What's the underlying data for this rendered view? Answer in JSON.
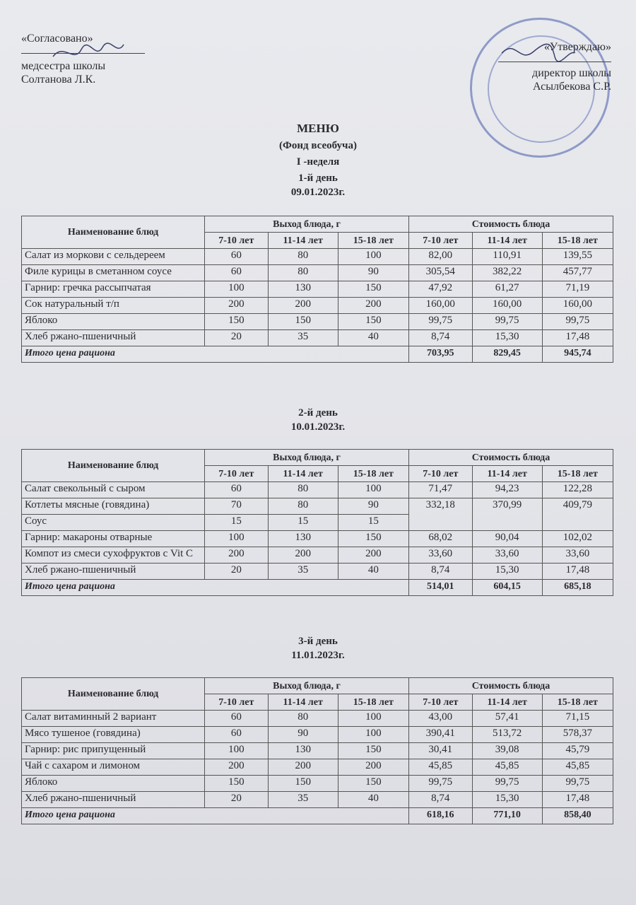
{
  "approval_left": {
    "label": "«Согласовано»",
    "role": "медсестра школы",
    "name": "Солтанова Л.К."
  },
  "approval_right": {
    "label": "«Утверждаю»",
    "role": "директор школы",
    "name": "Асылбекова С.Р."
  },
  "title": {
    "menu": "МЕНЮ",
    "fund": "(Фонд всеобуча)",
    "week": "I -неделя"
  },
  "columns": {
    "name": "Наименование блюд",
    "yield": "Выход блюда, г",
    "cost": "Стоимость блюда",
    "ages": [
      "7-10 лет",
      "11-14 лет",
      "15-18 лет"
    ],
    "total_label": "Итого цена рациона"
  },
  "days": [
    {
      "day": "1-й день",
      "date": "09.01.2023г.",
      "rows": [
        {
          "name": "Салат из моркови с сельдереем",
          "yield": [
            "60",
            "80",
            "100"
          ],
          "cost": [
            "82,00",
            "110,91",
            "139,55"
          ]
        },
        {
          "name": "Филе курицы в сметанном соусе",
          "yield": [
            "60",
            "80",
            "90"
          ],
          "cost": [
            "305,54",
            "382,22",
            "457,77"
          ]
        },
        {
          "name": "Гарнир: гречка рассыпчатая",
          "yield": [
            "100",
            "130",
            "150"
          ],
          "cost": [
            "47,92",
            "61,27",
            "71,19"
          ]
        },
        {
          "name": "Сок натуральный т/п",
          "yield": [
            "200",
            "200",
            "200"
          ],
          "cost": [
            "160,00",
            "160,00",
            "160,00"
          ]
        },
        {
          "name": "Яблоко",
          "yield": [
            "150",
            "150",
            "150"
          ],
          "cost": [
            "99,75",
            "99,75",
            "99,75"
          ]
        },
        {
          "name": "Хлеб ржано-пшеничный",
          "yield": [
            "20",
            "35",
            "40"
          ],
          "cost": [
            "8,74",
            "15,30",
            "17,48"
          ]
        }
      ],
      "totals": [
        "703,95",
        "829,45",
        "945,74"
      ]
    },
    {
      "day": "2-й день",
      "date": "10.01.2023г.",
      "rows": [
        {
          "name": "Салат свекольный с сыром",
          "yield": [
            "60",
            "80",
            "100"
          ],
          "cost": [
            "71,47",
            "94,23",
            "122,28"
          ]
        },
        {
          "name": "Котлеты мясные (говядина)",
          "yield": [
            "70",
            "80",
            "90"
          ],
          "cost": [
            "332,18",
            "370,99",
            "409,79"
          ],
          "rowspan": 2
        },
        {
          "name": "Соус",
          "yield": [
            "15",
            "15",
            "15"
          ],
          "cost": null
        },
        {
          "name": "Гарнир: макароны отварные",
          "yield": [
            "100",
            "130",
            "150"
          ],
          "cost": [
            "68,02",
            "90,04",
            "102,02"
          ]
        },
        {
          "name": "Компот из смеси сухофруктов с Vit C",
          "yield": [
            "200",
            "200",
            "200"
          ],
          "cost": [
            "33,60",
            "33,60",
            "33,60"
          ]
        },
        {
          "name": "Хлеб ржано-пшеничный",
          "yield": [
            "20",
            "35",
            "40"
          ],
          "cost": [
            "8,74",
            "15,30",
            "17,48"
          ]
        }
      ],
      "totals": [
        "514,01",
        "604,15",
        "685,18"
      ]
    },
    {
      "day": "3-й день",
      "date": "11.01.2023г.",
      "rows": [
        {
          "name": "Салат витаминный 2 вариант",
          "yield": [
            "60",
            "80",
            "100"
          ],
          "cost": [
            "43,00",
            "57,41",
            "71,15"
          ]
        },
        {
          "name": "Мясо тушеное (говядина)",
          "yield": [
            "60",
            "90",
            "100"
          ],
          "cost": [
            "390,41",
            "513,72",
            "578,37"
          ]
        },
        {
          "name": "Гарнир: рис припущенный",
          "yield": [
            "100",
            "130",
            "150"
          ],
          "cost": [
            "30,41",
            "39,08",
            "45,79"
          ]
        },
        {
          "name": "Чай с сахаром и лимоном",
          "yield": [
            "200",
            "200",
            "200"
          ],
          "cost": [
            "45,85",
            "45,85",
            "45,85"
          ]
        },
        {
          "name": "Яблоко",
          "yield": [
            "150",
            "150",
            "150"
          ],
          "cost": [
            "99,75",
            "99,75",
            "99,75"
          ]
        },
        {
          "name": "Хлеб ржано-пшеничный",
          "yield": [
            "20",
            "35",
            "40"
          ],
          "cost": [
            "8,74",
            "15,30",
            "17,48"
          ]
        }
      ],
      "totals": [
        "618,16",
        "771,10",
        "858,40"
      ]
    }
  ],
  "colors": {
    "stamp": "#4a5aaa",
    "ink": "#2a2a30"
  }
}
